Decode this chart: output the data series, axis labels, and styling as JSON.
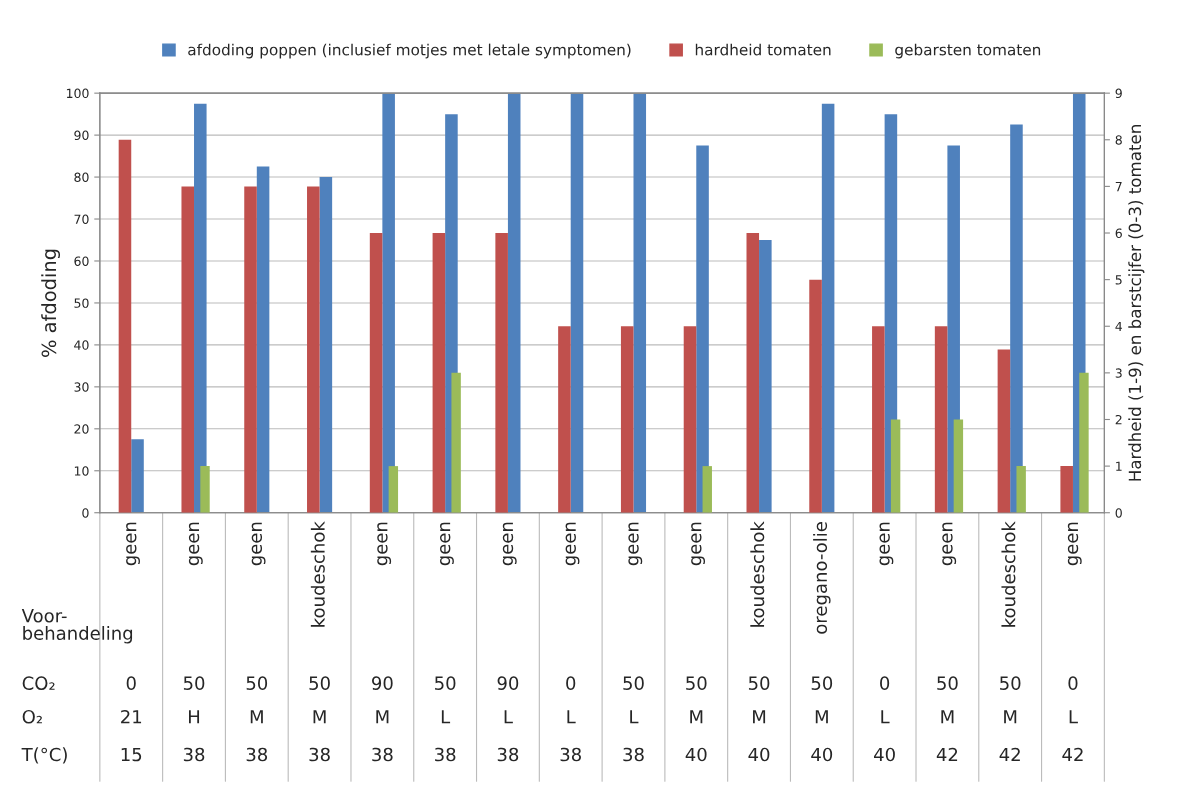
{
  "chart_data": {
    "type": "bar",
    "categories": [
      "geen\n0\n21\n15",
      "geen\n50\nH\n38",
      "geen\n50\nM\n38",
      "koudeschok\n50\nM\n38",
      "geen\n90\nM\n38",
      "geen\n50\nL\n38",
      "geen\n90\nL\n38",
      "geen\n0\nL\n38",
      "geen\n50\nL\n38",
      "geen\n50\nM\n40",
      "koudeschok\n50\nM\n40",
      "oregano-olie\n50\nM\n40",
      "geen\n0\nL\n40",
      "geen\n50\nM\n42",
      "koudeschok\n50\nM\n42",
      "geen\n0\nL\n42"
    ],
    "series": [
      {
        "name": "afdoding poppen (inclusief motjes met letale symptomen)",
        "color": "#4f81bd",
        "values": [
          17.5,
          97.5,
          82.5,
          80,
          100,
          95,
          100,
          100,
          100,
          87.5,
          65,
          97.5,
          95,
          87.5,
          92.5,
          100
        ]
      },
      {
        "name": "hardheid tomaten",
        "color": "#c0504d",
        "axis": "y2",
        "values": [
          8,
          7,
          7,
          7,
          6,
          6,
          6,
          4,
          4,
          4,
          6,
          5,
          4,
          4,
          3.5,
          1
        ]
      },
      {
        "name": "gebarsten tomaten",
        "color": "#9bbb59",
        "axis": "y2",
        "values": [
          0,
          1,
          0,
          0,
          1,
          3,
          0,
          0,
          0,
          1,
          0,
          0,
          2,
          2,
          1,
          3
        ]
      }
    ],
    "ylabel": "% afdoding",
    "y2label": "Hardheid (1-9) en barstcijfer (0-3) tomaten",
    "ylim": [
      0,
      100
    ],
    "yticks": [
      0,
      10,
      20,
      30,
      40,
      50,
      60,
      70,
      80,
      90,
      100
    ],
    "y2lim": [
      0,
      9
    ],
    "y2ticks": [
      0,
      1,
      2,
      3,
      4,
      5,
      6,
      7,
      8,
      9
    ],
    "annotations": [
      "Voor-\nbehandeling",
      "CO₂",
      "O₂",
      "T(°C)"
    ],
    "grid": "y",
    "legend": "top"
  }
}
